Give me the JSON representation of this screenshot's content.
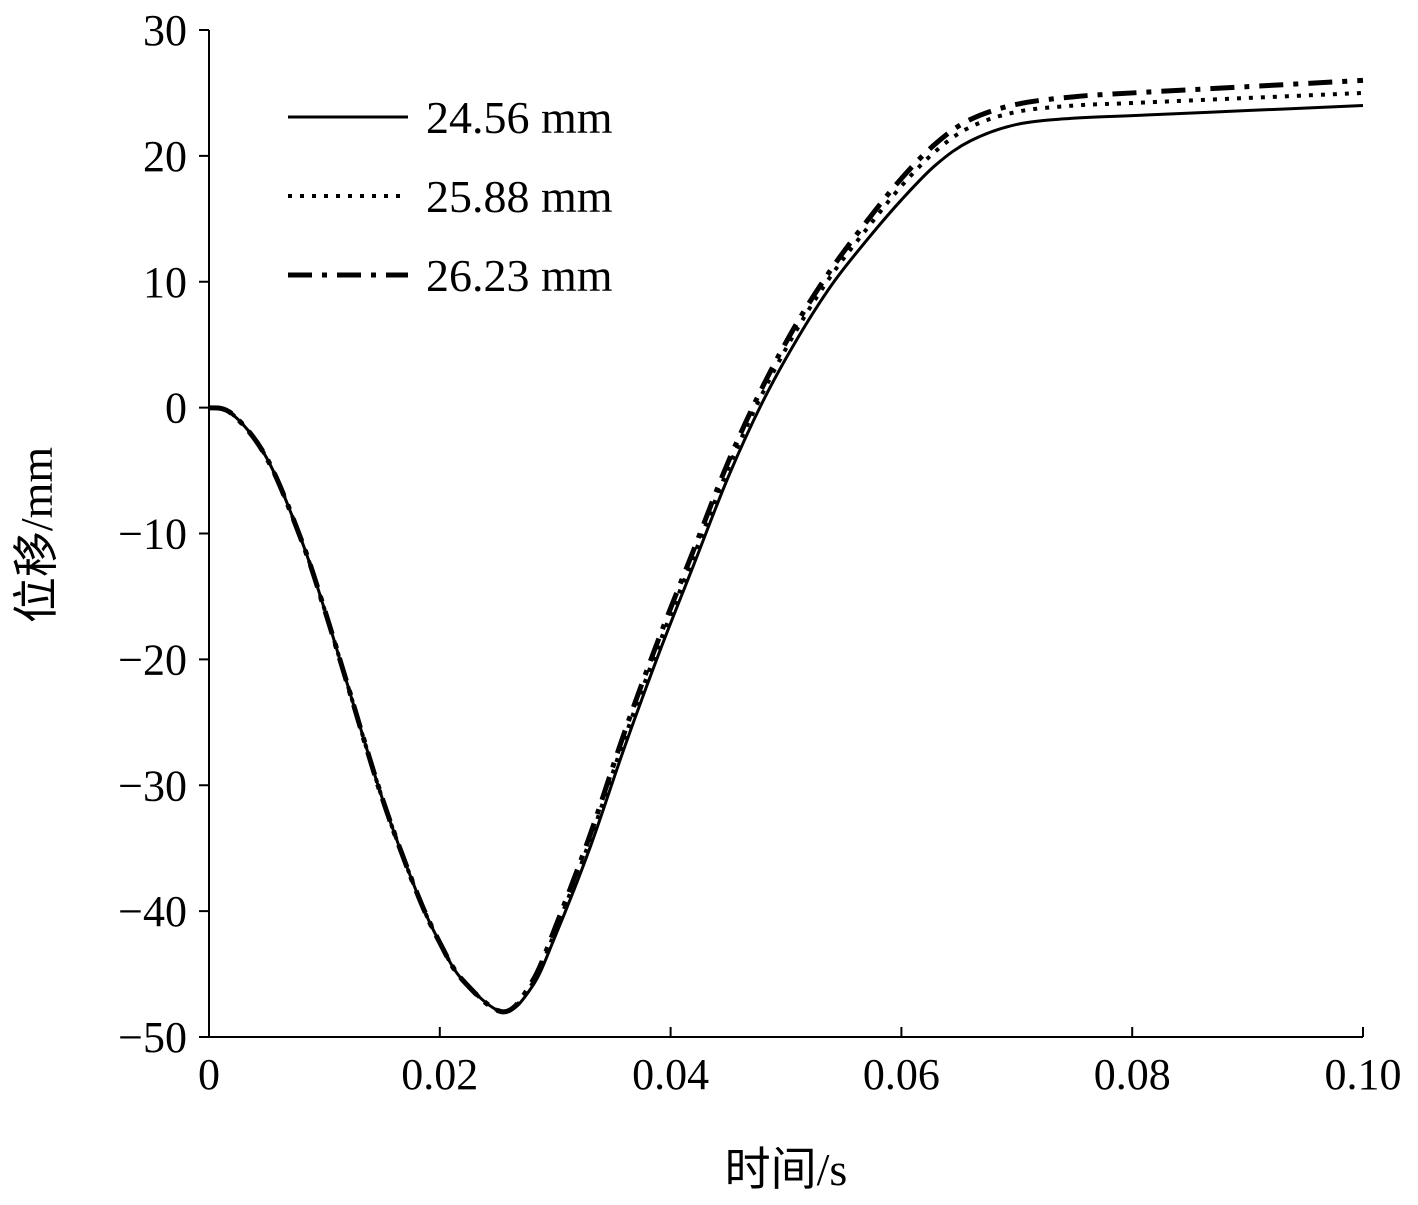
{
  "chart_data": {
    "type": "line",
    "title": "",
    "xlabel": "时间/s",
    "ylabel": "位移/mm",
    "xlim": [
      0,
      0.1
    ],
    "ylim": [
      -50,
      30
    ],
    "xticks": [
      0,
      0.02,
      0.04,
      0.06,
      0.08,
      0.1
    ],
    "xtick_labels": [
      "0",
      "0.02",
      "0.04",
      "0.06",
      "0.08",
      "0.10"
    ],
    "yticks": [
      30,
      20,
      10,
      0,
      -10,
      -20,
      -30,
      -40,
      -50
    ],
    "ytick_labels": [
      "30",
      "20",
      "10",
      "0",
      "−10",
      "−20",
      "−30",
      "−40",
      "−50"
    ],
    "grid": false,
    "legend_position": "top-left",
    "x": [
      0,
      0.002,
      0.005,
      0.008,
      0.01,
      0.012,
      0.015,
      0.018,
      0.02,
      0.022,
      0.0255,
      0.028,
      0.03,
      0.033,
      0.036,
      0.039,
      0.042,
      0.045,
      0.048,
      0.051,
      0.054,
      0.057,
      0.06,
      0.063,
      0.066,
      0.07,
      0.075,
      0.08,
      0.09,
      0.1
    ],
    "series": [
      {
        "name": "24.56 mm",
        "style": "solid",
        "values": [
          0,
          -0.5,
          -4,
          -10.5,
          -16,
          -22,
          -31,
          -38.5,
          -42.5,
          -45.5,
          -48,
          -46,
          -42,
          -35,
          -27,
          -19.5,
          -12.5,
          -5.5,
          0.5,
          5.5,
          9.8,
          13.3,
          16.5,
          19.3,
          21.2,
          22.5,
          23,
          23.2,
          23.6,
          24
        ]
      },
      {
        "name": "25.88 mm",
        "style": "dotted",
        "values": [
          0,
          -0.5,
          -4,
          -10.5,
          -16,
          -22,
          -31,
          -38.5,
          -42.5,
          -45.5,
          -48,
          -45.8,
          -41.6,
          -34.4,
          -26.3,
          -18.8,
          -11.8,
          -4.8,
          1.2,
          6.3,
          10.6,
          14.2,
          17.6,
          20.4,
          22.3,
          23.5,
          24,
          24.2,
          24.6,
          25
        ]
      },
      {
        "name": "26.23 mm",
        "style": "dashdot",
        "values": [
          0,
          -0.5,
          -4,
          -10.5,
          -16,
          -22,
          -31,
          -38.5,
          -42.5,
          -45.5,
          -48,
          -45.6,
          -41.3,
          -34,
          -25.8,
          -18.3,
          -11.3,
          -4.3,
          1.7,
          6.8,
          11.1,
          14.8,
          18.2,
          21,
          22.9,
          24.1,
          24.7,
          25,
          25.5,
          26
        ]
      }
    ]
  }
}
